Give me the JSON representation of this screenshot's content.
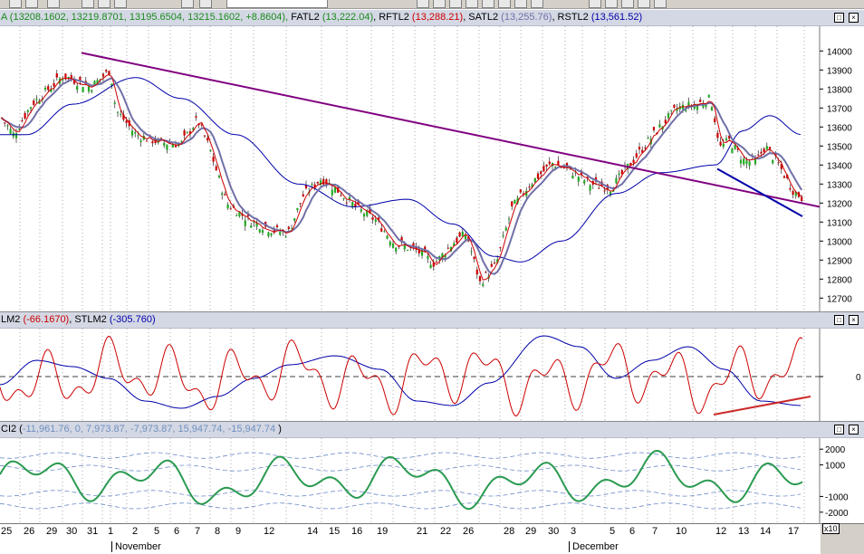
{
  "panels": {
    "price": {
      "title_parts": [
        {
          "text": "A (13208.1602, 13219.8701, 13195.6504, 13215.1602, +8.8604), ",
          "color": "#1a8a1a"
        },
        {
          "text": "FATL2 ",
          "color": "#000000"
        },
        {
          "text": "(13,222.04)",
          "color": "#1a8a1a"
        },
        {
          "text": ", RFTL2 ",
          "color": "#000000"
        },
        {
          "text": "(13,288.21)",
          "color": "#cc0000"
        },
        {
          "text": ", SATL2 ",
          "color": "#000000"
        },
        {
          "text": "(13,255.76)",
          "color": "#7070a8"
        },
        {
          "text": ", RSTL2 ",
          "color": "#000000"
        },
        {
          "text": "(13,561.52)",
          "color": "#0000aa"
        }
      ]
    },
    "osc": {
      "title_parts": [
        {
          "text": "LM2 ",
          "color": "#000000"
        },
        {
          "text": "(-66.1670)",
          "color": "#cc0000"
        },
        {
          "text": ", STLM2 ",
          "color": "#000000"
        },
        {
          "text": "(-305.760)",
          "color": "#0000aa"
        }
      ]
    },
    "ci": {
      "title_parts": [
        {
          "text": "CI2 (",
          "color": "#000000"
        },
        {
          "text": "-11,961.76, 0, 7,973.87, -7,973.87, 15,947.74, -15,947.74",
          "color": "#7090c0"
        },
        {
          "text": " )",
          "color": "#000000"
        }
      ]
    },
    "window_buttons": {
      "minimize": "□",
      "close": "×"
    }
  },
  "chart_data": [
    {
      "type": "candlestick",
      "name": "price",
      "yticks": [
        14000,
        13900,
        13800,
        13700,
        13600,
        13500,
        13400,
        13300,
        13200,
        13100,
        13000,
        12900,
        12800,
        12700
      ],
      "ylim": [
        12630,
        14130
      ],
      "series": [
        {
          "name": "FATL2",
          "color": "#cc0000"
        },
        {
          "name": "RFTL2",
          "color": "#cc0000"
        },
        {
          "name": "SATL2",
          "color": "#7070a8"
        },
        {
          "name": "RSTL2",
          "color": "#0000aa"
        }
      ],
      "annotations": [
        "descending trendline",
        "short trendline near end"
      ]
    },
    {
      "type": "line",
      "name": "oscillator",
      "yticks": [
        0
      ],
      "series": [
        {
          "name": "LM2",
          "color": "#cc0000"
        },
        {
          "name": "STLM2",
          "color": "#0000aa"
        }
      ]
    },
    {
      "type": "line",
      "name": "ci",
      "yticks": [
        2000,
        1000,
        -1000,
        -2000
      ],
      "ylim": [
        -2700,
        2700
      ],
      "series": [
        {
          "name": "CI2",
          "color": "#2a9a50"
        }
      ]
    }
  ],
  "x_axis": {
    "day_labels": [
      "25",
      "26",
      "29",
      "30",
      "31",
      "1",
      "2",
      "5",
      "6",
      "7",
      "8",
      "9",
      "12",
      "14",
      "15",
      "16",
      "19",
      "21",
      "22",
      "26",
      "28",
      "29",
      "30",
      "3",
      "5",
      "6",
      "7",
      "10",
      "12",
      "13",
      "14",
      "17"
    ],
    "month_labels": [
      "November",
      "December"
    ],
    "multiplier_badge": "x10"
  }
}
